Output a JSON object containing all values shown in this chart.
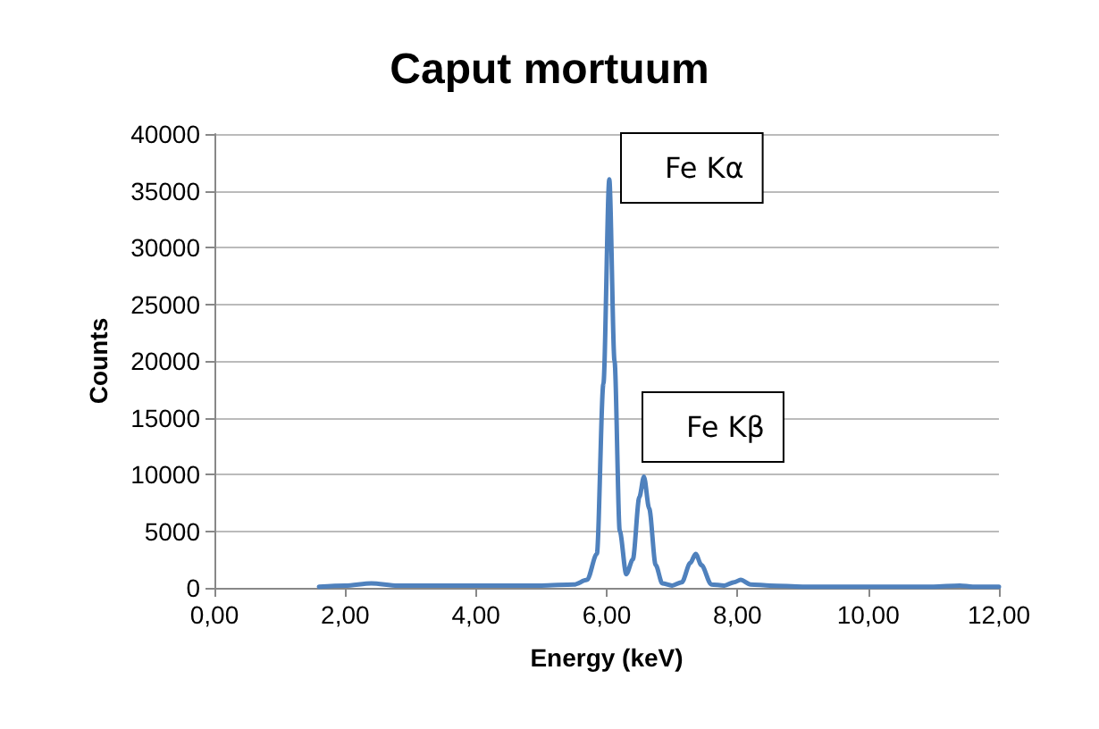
{
  "chart_data": {
    "type": "line",
    "title": "Caput mortuum",
    "xlabel": "Energy (keV)",
    "ylabel": "Counts",
    "x": [
      1.6,
      2.0,
      2.4,
      2.8,
      3.5,
      4.0,
      4.5,
      5.0,
      5.5,
      5.7,
      5.85,
      5.95,
      6.04,
      6.12,
      6.2,
      6.3,
      6.4,
      6.5,
      6.57,
      6.65,
      6.75,
      6.85,
      7.0,
      7.15,
      7.28,
      7.36,
      7.45,
      7.6,
      7.8,
      7.95,
      8.05,
      8.2,
      8.5,
      9.0,
      10.0,
      11.0,
      11.4,
      11.6,
      12.0
    ],
    "series": [
      {
        "color": "#4f81bd",
        "values": [
          100,
          200,
          400,
          200,
          200,
          200,
          200,
          200,
          300,
          700,
          3000,
          18000,
          36000,
          20000,
          5000,
          1200,
          2500,
          8000,
          9800,
          7000,
          2000,
          400,
          200,
          500,
          2200,
          3000,
          2000,
          300,
          200,
          500,
          700,
          300,
          200,
          100,
          100,
          100,
          200,
          100,
          100
        ]
      }
    ],
    "xlim": [
      0,
      12
    ],
    "xticks": [
      {
        "value": 0,
        "label": "0,00"
      },
      {
        "value": 2,
        "label": "2,00"
      },
      {
        "value": 4,
        "label": "4,00"
      },
      {
        "value": 6,
        "label": "6,00"
      },
      {
        "value": 8,
        "label": "8,00"
      },
      {
        "value": 10,
        "label": "10,00"
      },
      {
        "value": 12,
        "label": "12,00"
      }
    ],
    "ylim": [
      0,
      40000
    ],
    "yticks": [
      0,
      5000,
      10000,
      15000,
      20000,
      25000,
      30000,
      35000,
      40000
    ],
    "grid": "y",
    "marker": "none",
    "line_style": "solid",
    "annotations": [
      "Fe Kα",
      "Fe Kβ"
    ]
  }
}
